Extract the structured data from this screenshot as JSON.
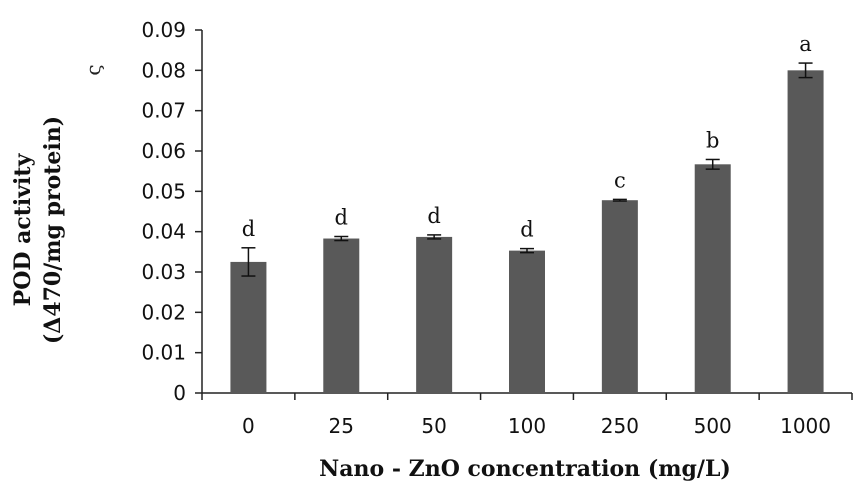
{
  "chart_data": {
    "type": "bar",
    "title": "",
    "xlabel": "Nano - ZnO concentration (mg/L)",
    "ylabel_lines": [
      "POD activity",
      "(Δ470/mg protein)"
    ],
    "categories": [
      "0",
      "25",
      "50",
      "100",
      "250",
      "500",
      "1000"
    ],
    "series": [
      {
        "values": [
          0.0325,
          0.0383,
          0.0387,
          0.0353,
          0.0478,
          0.0567,
          0.08
        ],
        "errors": [
          0.0035,
          0.0005,
          0.0005,
          0.0005,
          0.0002,
          0.0012,
          0.0018
        ],
        "labels": [
          "d",
          "d",
          "d",
          "d",
          "c",
          "b",
          "a"
        ]
      }
    ],
    "ylim": [
      0,
      0.09
    ],
    "yticks": [
      "0",
      "0.01",
      "0.02",
      "0.03",
      "0.04",
      "0.05",
      "0.06",
      "0.07",
      "0.08",
      "0.09"
    ],
    "grid": false,
    "legend": "none",
    "bar_color": "#595959",
    "stray_mark": "ς"
  }
}
